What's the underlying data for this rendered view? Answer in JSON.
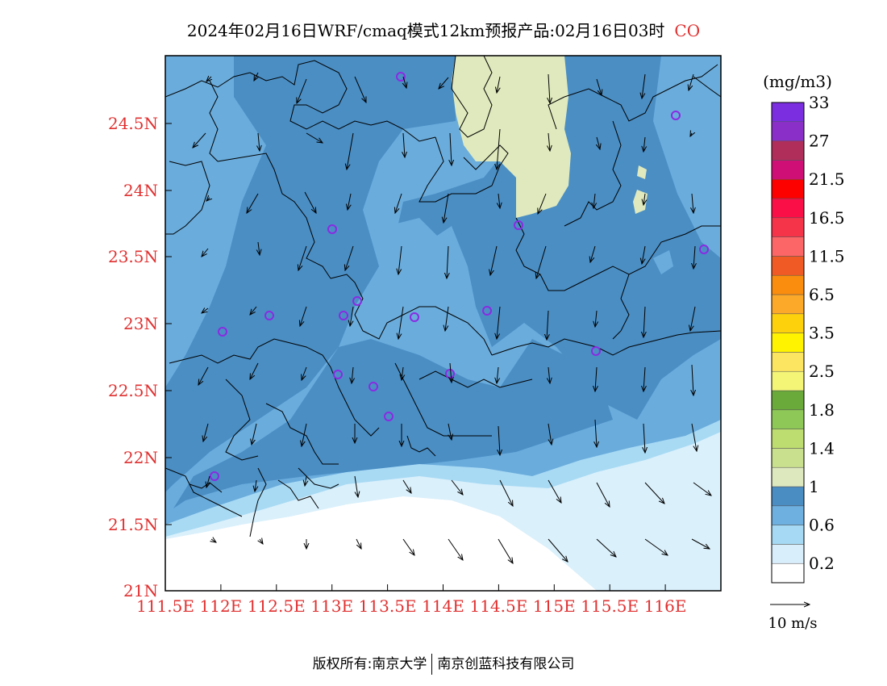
{
  "title": {
    "main": "2024年02月16日WRF/cmaq模式12km预报产品:02月16日03时",
    "species": "CO"
  },
  "map": {
    "lon_labels": [
      "111.5E",
      "112E",
      "112.5E",
      "113E",
      "113.5E",
      "114E",
      "114.5E",
      "115E",
      "115.5E",
      "116E"
    ],
    "lat_labels": [
      "24.5N",
      "24N",
      "23.5N",
      "23N",
      "22.5N",
      "22N",
      "21.5N",
      "21N"
    ],
    "colors": {
      "axis_label": "#e03030",
      "land_dark": "#4a8ec4",
      "land_mid": "#6aacdc",
      "sea_light": "#a8daf4",
      "sea_pale": "#daf0fb",
      "high": "#dfe9bd",
      "station_marker": "#8a2be2"
    }
  },
  "legend": {
    "unit": "(mg/m3)",
    "colors": [
      "#ffffff",
      "#d9eefb",
      "#a6d9f4",
      "#6eb0e0",
      "#4a8dc3",
      "#dde8bf",
      "#c9e08e",
      "#bedd70",
      "#8ec857",
      "#6aaa3a",
      "#f4f577",
      "#fce560",
      "#fff300",
      "#fdd20d",
      "#fca92a",
      "#fa8d0d",
      "#f05a24",
      "#fc6666",
      "#f5344a",
      "#fa0f46",
      "#fd0000",
      "#cf0f76",
      "#af2e5a",
      "#8b2fc9",
      "#7a2ee0"
    ],
    "labels": [
      "0.2",
      "0.6",
      "1",
      "1.4",
      "1.8",
      "2.5",
      "3.5",
      "6.5",
      "11.5",
      "16.5",
      "21.5",
      "27",
      "33"
    ],
    "wind_label": "10 m/s"
  },
  "footer": {
    "left": "版权所有:南京大学",
    "right": "南京创蓝科技有限公司"
  }
}
